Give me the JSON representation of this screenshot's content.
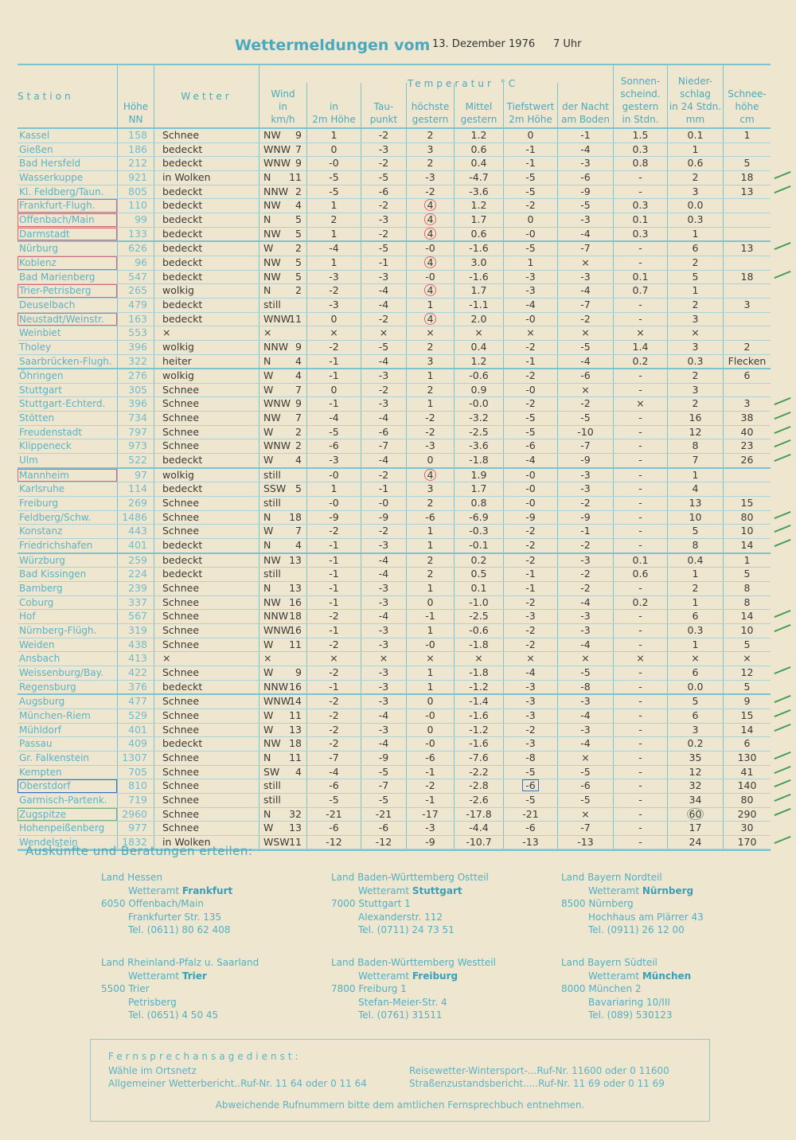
{
  "title": {
    "heading": "Wettermeldungen vom",
    "date": "13. Dezember 1976",
    "time": "7 Uhr"
  },
  "headers": {
    "station": "Station",
    "height": [
      "Höhe",
      "NN"
    ],
    "weather": "Wetter",
    "wind": [
      "Wind",
      "in",
      "km/h"
    ],
    "temperature": "Temperatur °C",
    "t2m": [
      "in",
      "2m Höhe"
    ],
    "dew": [
      "Tau-",
      "punkt"
    ],
    "max": [
      "höchste",
      "gestern"
    ],
    "mean": [
      "Mittel",
      "gestern"
    ],
    "min2m": [
      "Tiefstwert",
      "2m Höhe"
    ],
    "minground": [
      "der Nacht",
      "am Boden"
    ],
    "sun": [
      "Sonnen-",
      "scheind.",
      "gestern",
      "in Stdn."
    ],
    "precip": [
      "Nieder-",
      "schlag",
      "in 24 Stdn.",
      "mm"
    ],
    "snow": [
      "Schnee-",
      "höhe",
      "cm"
    ]
  },
  "rows": [
    [
      "Kassel",
      "158",
      "Schnee",
      "NW",
      "9",
      "1",
      "-2",
      "2",
      "1.2",
      "0",
      "-1",
      "1.5",
      "0.1",
      "1"
    ],
    [
      "Gießen",
      "186",
      "bedeckt",
      "WNW",
      "7",
      "0",
      "-3",
      "3",
      "0.6",
      "-1",
      "-4",
      "0.3",
      "1",
      ""
    ],
    [
      "Bad Hersfeld",
      "212",
      "bedeckt",
      "WNW",
      "9",
      "-0",
      "-2",
      "2",
      "0.4",
      "-1",
      "-3",
      "0.8",
      "0.6",
      "5"
    ],
    [
      "Wasserkuppe",
      "921",
      "in Wolken",
      "N",
      "11",
      "-5",
      "-5",
      "-3",
      "-4.7",
      "-5",
      "-6",
      "-",
      "2",
      "18"
    ],
    [
      "Kl. Feldberg/Taun.",
      "805",
      "bedeckt",
      "NNW",
      "2",
      "-5",
      "-6",
      "-2",
      "-3.6",
      "-5",
      "-9",
      "-",
      "3",
      "13"
    ],
    [
      "Frankfurt-Flugh.",
      "110",
      "bedeckt",
      "NW",
      "4",
      "1",
      "-2",
      "4",
      "1.2",
      "-2",
      "-5",
      "0.3",
      "0.0",
      ""
    ],
    [
      "Offenbach/Main",
      "99",
      "bedeckt",
      "N",
      "5",
      "2",
      "-3",
      "4",
      "1.7",
      "0",
      "-3",
      "0.1",
      "0.3",
      ""
    ],
    [
      "Darmstadt",
      "133",
      "bedeckt",
      "NW",
      "5",
      "1",
      "-2",
      "4",
      "0.6",
      "-0",
      "-4",
      "0.3",
      "1",
      ""
    ],
    [
      "Nürburg",
      "626",
      "bedeckt",
      "W",
      "2",
      "-4",
      "-5",
      "-0",
      "-1.6",
      "-5",
      "-7",
      "-",
      "6",
      "13"
    ],
    [
      "Koblenz",
      "96",
      "bedeckt",
      "NW",
      "5",
      "1",
      "-1",
      "4",
      "3.0",
      "1",
      "×",
      "-",
      "2",
      ""
    ],
    [
      "Bad Marienberg",
      "547",
      "bedeckt",
      "NW",
      "5",
      "-3",
      "-3",
      "-0",
      "-1.6",
      "-3",
      "-3",
      "0.1",
      "5",
      "18"
    ],
    [
      "Trier-Petrisberg",
      "265",
      "wolkig",
      "N",
      "2",
      "-2",
      "-4",
      "4",
      "1.7",
      "-3",
      "-4",
      "0.7",
      "1",
      ""
    ],
    [
      "Deuselbach",
      "479",
      "bedeckt",
      "still",
      "",
      "-3",
      "-4",
      "1",
      "-1.1",
      "-4",
      "-7",
      "-",
      "2",
      "3"
    ],
    [
      "Neustadt/Weinstr.",
      "163",
      "bedeckt",
      "WNW",
      "11",
      "0",
      "-2",
      "4",
      "2.0",
      "-0",
      "-2",
      "-",
      "3",
      ""
    ],
    [
      "Weinbiet",
      "553",
      "×",
      "×",
      "",
      "×",
      "×",
      "×",
      "×",
      "×",
      "×",
      "×",
      "×",
      ""
    ],
    [
      "Tholey",
      "396",
      "wolkig",
      "NNW",
      "9",
      "-2",
      "-5",
      "2",
      "0.4",
      "-2",
      "-5",
      "1.4",
      "3",
      "2"
    ],
    [
      "Saarbrücken-Flugh.",
      "322",
      "heiter",
      "N",
      "4",
      "-1",
      "-4",
      "3",
      "1.2",
      "-1",
      "-4",
      "0.2",
      "0.3",
      "Flecken"
    ],
    [
      "Öhringen",
      "276",
      "wolkig",
      "W",
      "4",
      "-1",
      "-3",
      "1",
      "-0.6",
      "-2",
      "-6",
      "-",
      "2",
      "6"
    ],
    [
      "Stuttgart",
      "305",
      "Schnee",
      "W",
      "7",
      "0",
      "-2",
      "2",
      "0.9",
      "-0",
      "×",
      "-",
      "3",
      ""
    ],
    [
      "Stuttgart-Echterd.",
      "396",
      "Schnee",
      "WNW",
      "9",
      "-1",
      "-3",
      "1",
      "-0.0",
      "-2",
      "-2",
      "×",
      "2",
      "3"
    ],
    [
      "Stötten",
      "734",
      "Schnee",
      "NW",
      "7",
      "-4",
      "-4",
      "-2",
      "-3.2",
      "-5",
      "-5",
      "-",
      "16",
      "38"
    ],
    [
      "Freudenstadt",
      "797",
      "Schnee",
      "W",
      "2",
      "-5",
      "-6",
      "-2",
      "-2.5",
      "-5",
      "-10",
      "-",
      "12",
      "40"
    ],
    [
      "Klippeneck",
      "973",
      "Schnee",
      "WNW",
      "2",
      "-6",
      "-7",
      "-3",
      "-3.6",
      "-6",
      "-7",
      "-",
      "8",
      "23"
    ],
    [
      "Ulm",
      "522",
      "bedeckt",
      "W",
      "4",
      "-3",
      "-4",
      "0",
      "-1.8",
      "-4",
      "-9",
      "-",
      "7",
      "26"
    ],
    [
      "Mannheim",
      "97",
      "wolkig",
      "still",
      "",
      "-0",
      "-2",
      "4",
      "1.9",
      "-0",
      "-3",
      "-",
      "1",
      ""
    ],
    [
      "Karlsruhe",
      "114",
      "bedeckt",
      "SSW",
      "5",
      "1",
      "-1",
      "3",
      "1.7",
      "-0",
      "-3",
      "-",
      "4",
      ""
    ],
    [
      "Freiburg",
      "269",
      "Schnee",
      "still",
      "",
      "-0",
      "-0",
      "2",
      "0.8",
      "-0",
      "-2",
      "-",
      "13",
      "15"
    ],
    [
      "Feldberg/Schw.",
      "1486",
      "Schnee",
      "N",
      "18",
      "-9",
      "-9",
      "-6",
      "-6.9",
      "-9",
      "-9",
      "-",
      "10",
      "80"
    ],
    [
      "Konstanz",
      "443",
      "Schnee",
      "W",
      "7",
      "-2",
      "-2",
      "1",
      "-0.3",
      "-2",
      "-1",
      "-",
      "5",
      "10"
    ],
    [
      "Friedrichshafen",
      "401",
      "bedeckt",
      "N",
      "4",
      "-1",
      "-3",
      "1",
      "-0.1",
      "-2",
      "-2",
      "-",
      "8",
      "14"
    ],
    [
      "Würzburg",
      "259",
      "bedeckt",
      "NW",
      "13",
      "-1",
      "-4",
      "2",
      "0.2",
      "-2",
      "-3",
      "0.1",
      "0.4",
      "1"
    ],
    [
      "Bad Kissingen",
      "224",
      "bedeckt",
      "still",
      "",
      "-1",
      "-4",
      "2",
      "0.5",
      "-1",
      "-2",
      "0.6",
      "1",
      "5"
    ],
    [
      "Bamberg",
      "239",
      "Schnee",
      "N",
      "13",
      "-1",
      "-3",
      "1",
      "0.1",
      "-1",
      "-2",
      "-",
      "2",
      "8"
    ],
    [
      "Coburg",
      "337",
      "Schnee",
      "NW",
      "16",
      "-1",
      "-3",
      "0",
      "-1.0",
      "-2",
      "-4",
      "0.2",
      "1",
      "8"
    ],
    [
      "Hof",
      "567",
      "Schnee",
      "NNW",
      "18",
      "-2",
      "-4",
      "-1",
      "-2.5",
      "-3",
      "-3",
      "-",
      "6",
      "14"
    ],
    [
      "Nürnberg-Flügh.",
      "319",
      "Schnee",
      "WNW",
      "16",
      "-1",
      "-3",
      "1",
      "-0.6",
      "-2",
      "-3",
      "-",
      "0.3",
      "10"
    ],
    [
      "Weiden",
      "438",
      "Schnee",
      "W",
      "11",
      "-2",
      "-3",
      "-0",
      "-1.8",
      "-2",
      "-4",
      "-",
      "1",
      "5"
    ],
    [
      "Ansbach",
      "413",
      "×",
      "×",
      "",
      "×",
      "×",
      "×",
      "×",
      "×",
      "×",
      "×",
      "×",
      "×"
    ],
    [
      "Weissenburg/Bay.",
      "422",
      "Schnee",
      "W",
      "9",
      "-2",
      "-3",
      "1",
      "-1.8",
      "-4",
      "-5",
      "-",
      "6",
      "12"
    ],
    [
      "Regensburg",
      "376",
      "bedeckt",
      "NNW",
      "16",
      "-1",
      "-3",
      "1",
      "-1.2",
      "-3",
      "-8",
      "-",
      "0.0",
      "5"
    ],
    [
      "Augsburg",
      "477",
      "Schnee",
      "WNW",
      "14",
      "-2",
      "-3",
      "0",
      "-1.4",
      "-3",
      "-3",
      "-",
      "5",
      "9"
    ],
    [
      "München-Riem",
      "529",
      "Schnee",
      "W",
      "11",
      "-2",
      "-4",
      "-0",
      "-1.6",
      "-3",
      "-4",
      "-",
      "6",
      "15"
    ],
    [
      "Mühldorf",
      "401",
      "Schnee",
      "W",
      "13",
      "-2",
      "-3",
      "0",
      "-1.2",
      "-2",
      "-3",
      "-",
      "3",
      "14"
    ],
    [
      "Passau",
      "409",
      "bedeckt",
      "NW",
      "18",
      "-2",
      "-4",
      "-0",
      "-1.6",
      "-3",
      "-4",
      "-",
      "0.2",
      "6"
    ],
    [
      "Gr. Falkenstein",
      "1307",
      "Schnee",
      "N",
      "11",
      "-7",
      "-9",
      "-6",
      "-7.6",
      "-8",
      "×",
      "-",
      "35",
      "130"
    ],
    [
      "Kempten",
      "705",
      "Schnee",
      "SW",
      "4",
      "-4",
      "-5",
      "-1",
      "-2.2",
      "-5",
      "-5",
      "-",
      "12",
      "41"
    ],
    [
      "Oberstdorf",
      "810",
      "Schnee",
      "still",
      "",
      "-6",
      "-7",
      "-2",
      "-2.8",
      "-6",
      "-6",
      "-",
      "32",
      "140"
    ],
    [
      "Garmisch-Partenk.",
      "719",
      "Schnee",
      "still",
      "",
      "-5",
      "-5",
      "-1",
      "-2.6",
      "-5",
      "-5",
      "-",
      "34",
      "80"
    ],
    [
      "Zugspitze",
      "2960",
      "Schnee",
      "N",
      "32",
      "-21",
      "-21",
      "-17",
      "-17.8",
      "-21",
      "×",
      "-",
      "60",
      "290"
    ],
    [
      "Hohenpeißenberg",
      "977",
      "Schnee",
      "W",
      "13",
      "-6",
      "-6",
      "-3",
      "-4.4",
      "-6",
      "-7",
      "-",
      "17",
      "30"
    ],
    [
      "Wendelstein",
      "1832",
      "in Wolken",
      "WSW",
      "11",
      "-12",
      "-12",
      "-9",
      "-10.7",
      "-13",
      "-13",
      "-",
      "24",
      "170"
    ]
  ],
  "annotations": {
    "red_station_rows": [
      5,
      6,
      7,
      9,
      11,
      13,
      24
    ],
    "red_circled_max_rows": [
      5,
      6,
      7,
      9,
      11,
      13,
      24
    ],
    "blue_station_rows": [
      46
    ],
    "blue_marked_min_rows": [
      46
    ],
    "green_station_rows": [
      48
    ],
    "green_circled_precip_rows": [
      48
    ],
    "green_tick_rows": [
      3,
      4,
      8,
      10,
      19,
      20,
      21,
      22,
      23,
      27,
      28,
      29,
      34,
      35,
      38,
      40,
      41,
      42,
      44,
      45,
      46,
      47,
      48,
      50
    ],
    "colors": {
      "red": "#e4636f",
      "blue": "#3a6fc6",
      "green": "#3f9d52",
      "ink": "#46a9bd"
    }
  },
  "info": {
    "lead": "Auskünfte und Beratungen erteilen:",
    "offices": [
      {
        "land": "Land Hessen",
        "prefix": "Wetteramt",
        "name": "Frankfurt",
        "city": "6050 Offenbach/Main",
        "street": "Frankfurter Str. 135",
        "tel": "Tel. (0611) 80 62 408"
      },
      {
        "land": "Land Baden-Württemberg Ostteil",
        "prefix": "Wetteramt",
        "name": "Stuttgart",
        "city": "7000 Stuttgart 1",
        "street": "Alexanderstr. 112",
        "tel": "Tel. (0711) 24 73 51"
      },
      {
        "land": "Land Bayern Nordteil",
        "prefix": "Wetteramt",
        "name": "Nürnberg",
        "city": "8500 Nürnberg",
        "street": "Hochhaus am Plärrer 43",
        "tel": "Tel. (0911) 26 12 00"
      },
      {
        "land": "Land Rheinland-Pfalz u. Saarland",
        "prefix": "Wetteramt",
        "name": "Trier",
        "city": "5500 Trier",
        "street": "Petrisberg",
        "tel": "Tel. (0651) 4 50 45"
      },
      {
        "land": "Land Baden-Württemberg Westteil",
        "prefix": "Wetteramt",
        "name": "Freiburg",
        "city": "7800 Freiburg 1",
        "street": "Stefan-Meier-Str. 4",
        "tel": "Tel. (0761) 31511"
      },
      {
        "land": "Land Bayern Südteil",
        "prefix": "Wetteramt",
        "name": "München",
        "city": "8000 München 2",
        "street": "Bavariaring 10/III",
        "tel": "Tel. (089) 530123"
      }
    ]
  },
  "phone": {
    "heading": "Fernsprechansagedienst:",
    "l1": "Wähle im Ortsnetz",
    "l2": "Allgemeiner Wetterbericht..Ruf-Nr. 11 64 oder 0 11 64",
    "r1": "Reisewetter-Wintersport-...Ruf-Nr. 11600 oder 0 11600",
    "r2": "Straßenzustandsbericht.....Ruf-Nr. 11 69 oder 0 11 69",
    "footer": "Abweichende Rufnummern bitte dem amtlichen Fernsprechbuch entnehmen."
  }
}
